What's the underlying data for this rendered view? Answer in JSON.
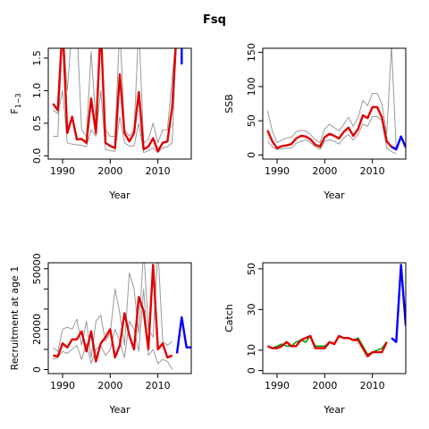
{
  "title": "Fsq",
  "colors": {
    "median": "#e00000",
    "bounds": "#999999",
    "forecast": "#0000ff",
    "observed": "#009900",
    "axis": "#000000"
  },
  "chart_data": [
    {
      "type": "line",
      "ylabel": "F",
      "ylabel_sub": "1−3",
      "xlabel": "Year",
      "xlim": [
        1987,
        2017
      ],
      "ylim": [
        -0.05,
        1.65
      ],
      "x_ticks": [
        1990,
        2000,
        2010
      ],
      "y_ticks": [
        0.0,
        0.5,
        1.0,
        1.5
      ],
      "y_tick_labels": [
        "0.0",
        "0.5",
        "1.0",
        "1.5"
      ],
      "series": [
        {
          "role": "upper",
          "x": [
            1988,
            1989,
            1990,
            1991,
            1992,
            1993,
            1994,
            1995,
            1996,
            1997,
            1998,
            1999,
            2000,
            2001,
            2002,
            2003,
            2004,
            2005,
            2006,
            2007,
            2008,
            2009,
            2010,
            2011,
            2012,
            2013,
            2014
          ],
          "values": [
            0.3,
            0.3,
            2.0,
            1.0,
            2.0,
            2.0,
            0.4,
            0.3,
            1.6,
            0.5,
            2.0,
            0.4,
            0.3,
            0.3,
            2.0,
            0.4,
            0.3,
            0.4,
            2.0,
            0.2,
            0.25,
            0.5,
            0.2,
            0.4,
            0.4,
            1.2,
            2.0
          ]
        },
        {
          "role": "lower",
          "x": [
            1988,
            1989,
            1990,
            1991,
            1992,
            1993,
            1994,
            1995,
            1996,
            1997,
            1998,
            1999,
            2000,
            2001,
            2002,
            2003,
            2004,
            2005,
            2006,
            2007,
            2008,
            2009,
            2010,
            2011,
            2012,
            2013,
            2014
          ],
          "values": [
            0.7,
            0.65,
            1.0,
            0.2,
            0.18,
            0.17,
            0.16,
            0.14,
            0.4,
            0.3,
            1.0,
            0.1,
            0.08,
            0.07,
            0.6,
            0.2,
            0.15,
            0.15,
            0.5,
            0.05,
            0.08,
            0.12,
            0.05,
            0.12,
            0.14,
            0.2,
            2.0
          ]
        },
        {
          "role": "median",
          "x": [
            1988,
            1989,
            1990,
            1991,
            1992,
            1993,
            1994,
            1995,
            1996,
            1997,
            1998,
            1999,
            2000,
            2001,
            2002,
            2003,
            2004,
            2005,
            2006,
            2007,
            2008,
            2009,
            2010,
            2011,
            2012,
            2013,
            2014
          ],
          "values": [
            0.8,
            0.7,
            2.0,
            0.35,
            0.6,
            0.25,
            0.26,
            0.2,
            0.88,
            0.35,
            2.0,
            0.2,
            0.15,
            0.12,
            1.25,
            0.35,
            0.22,
            0.35,
            0.98,
            0.1,
            0.14,
            0.27,
            0.07,
            0.2,
            0.22,
            0.75,
            2.0
          ]
        },
        {
          "role": "forecast",
          "x": [
            2015,
            2015
          ],
          "values": [
            2.0,
            1.4
          ]
        }
      ]
    },
    {
      "type": "line",
      "ylabel": "SSB",
      "xlabel": "Year",
      "xlim": [
        1987,
        2017
      ],
      "ylim": [
        -6,
        156
      ],
      "x_ticks": [
        1990,
        2000,
        2010
      ],
      "y_ticks": [
        0,
        50,
        100,
        150
      ],
      "y_tick_labels": [
        "0",
        "50",
        "100",
        "150"
      ],
      "series": [
        {
          "role": "upper",
          "x": [
            1988,
            1989,
            1990,
            1991,
            1992,
            1993,
            1994,
            1995,
            1996,
            1997,
            1998,
            1999,
            2000,
            2001,
            2002,
            2003,
            2004,
            2005,
            2006,
            2007,
            2008,
            2009,
            2010,
            2011,
            2012,
            2013,
            2014,
            2015
          ],
          "values": [
            65,
            35,
            18,
            22,
            25,
            26,
            34,
            36,
            35,
            30,
            22,
            18,
            38,
            45,
            40,
            35,
            45,
            55,
            42,
            55,
            80,
            72,
            90,
            90,
            75,
            30,
            160,
            10
          ]
        },
        {
          "role": "lower",
          "x": [
            1988,
            1989,
            1990,
            1991,
            1992,
            1993,
            1994,
            1995,
            1996,
            1997,
            1998,
            1999,
            2000,
            2001,
            2002,
            2003,
            2004,
            2005,
            2006,
            2007,
            2008,
            2009,
            2010,
            2011,
            2012,
            2013,
            2014,
            2015
          ],
          "values": [
            20,
            12,
            8,
            9,
            10,
            10,
            17,
            20,
            22,
            18,
            12,
            8,
            20,
            22,
            20,
            16,
            25,
            30,
            22,
            30,
            45,
            42,
            56,
            56,
            50,
            10,
            5,
            2
          ]
        },
        {
          "role": "median",
          "x": [
            1988,
            1989,
            1990,
            1991,
            1992,
            1993,
            1994,
            1995,
            1996,
            1997,
            1998,
            1999,
            2000,
            2001,
            2002,
            2003,
            2004,
            2005,
            2006,
            2007,
            2008,
            2009,
            2010,
            2011,
            2012,
            2013,
            2014,
            2015
          ],
          "values": [
            36,
            20,
            10,
            13,
            14,
            16,
            24,
            28,
            27,
            23,
            15,
            12,
            26,
            31,
            28,
            24,
            34,
            40,
            28,
            38,
            58,
            54,
            70,
            70,
            55,
            20,
            12,
            9
          ]
        },
        {
          "role": "forecast",
          "x": [
            2014,
            2015,
            2016,
            2017
          ],
          "values": [
            12,
            8,
            27,
            11
          ]
        }
      ]
    },
    {
      "type": "line",
      "ylabel": "Recruitment at age 1",
      "xlabel": "Year",
      "xlim": [
        1987,
        2017
      ],
      "ylim": [
        -2000,
        53000
      ],
      "x_ticks": [
        1990,
        2000,
        2010
      ],
      "y_ticks": [
        0,
        10000,
        20000,
        30000,
        40000,
        50000
      ],
      "y_tick_labels": [
        "0",
        "",
        "20000",
        "",
        "",
        "50000"
      ],
      "series": [
        {
          "role": "upper",
          "x": [
            1988,
            1989,
            1990,
            1991,
            1992,
            1993,
            1994,
            1995,
            1996,
            1997,
            1998,
            1999,
            2000,
            2001,
            2002,
            2003,
            2004,
            2005,
            2006,
            2007,
            2008,
            2009,
            2010,
            2011,
            2012,
            2013
          ],
          "values": [
            11000,
            9000,
            20000,
            21000,
            20000,
            25000,
            12000,
            24000,
            6000,
            24000,
            27000,
            14000,
            18000,
            40000,
            28000,
            12000,
            48000,
            40000,
            18000,
            60000,
            20000,
            16000,
            60000,
            14000,
            12000,
            14000
          ]
        },
        {
          "role": "lower",
          "x": [
            1988,
            1989,
            1990,
            1991,
            1992,
            1993,
            1994,
            1995,
            1996,
            1997,
            1998,
            1999,
            2000,
            2001,
            2002,
            2003,
            2004,
            2005,
            2006,
            2007,
            2008,
            2009,
            2010,
            2011,
            2012,
            2013
          ],
          "values": [
            5000,
            6000,
            9000,
            8000,
            10000,
            12000,
            5000,
            13000,
            3000,
            10000,
            12000,
            7000,
            10000,
            20000,
            14000,
            6000,
            24000,
            20000,
            9000,
            40000,
            7000,
            10000,
            3000,
            5000,
            4000,
            0
          ]
        },
        {
          "role": "median",
          "x": [
            1988,
            1989,
            1990,
            1991,
            1992,
            1993,
            1994,
            1995,
            1996,
            1997,
            1998,
            1999,
            2000,
            2001,
            2002,
            2003,
            2004,
            2005,
            2006,
            2007,
            2008,
            2009,
            2010,
            2011,
            2012,
            2013
          ],
          "values": [
            7000,
            6500,
            13000,
            11000,
            15000,
            15000,
            19000,
            9000,
            19000,
            4000,
            13000,
            16000,
            20000,
            6000,
            12000,
            28000,
            17000,
            10000,
            36000,
            29000,
            10000,
            52000,
            10000,
            13000,
            6000,
            7000
          ]
        },
        {
          "role": "forecast",
          "x": [
            2014,
            2015,
            2016,
            2017
          ],
          "values": [
            8000,
            26000,
            11000,
            11000
          ]
        }
      ]
    },
    {
      "type": "line",
      "ylabel": "Catch",
      "xlabel": "Year",
      "xlim": [
        1987,
        2017
      ],
      "ylim": [
        -1.5,
        53
      ],
      "x_ticks": [
        1990,
        2000,
        2010
      ],
      "y_ticks": [
        0,
        10,
        30,
        50
      ],
      "y_tick_labels": [
        "0",
        "10",
        "30",
        "50"
      ],
      "series": [
        {
          "role": "observed",
          "x": [
            1988,
            1989,
            1990,
            1991,
            1992,
            1993,
            1994,
            1995,
            1996,
            1997,
            1998,
            1999,
            2000,
            2001,
            2002,
            2003,
            2004,
            2005,
            2006,
            2007,
            2008,
            2009,
            2010,
            2011,
            2012,
            2013
          ],
          "values": [
            12,
            11,
            12,
            13,
            12,
            12,
            14,
            15,
            14,
            17,
            12,
            12,
            12,
            14,
            13,
            17,
            16,
            16,
            15,
            16,
            12,
            8,
            9,
            10,
            11,
            14
          ]
        },
        {
          "role": "median",
          "x": [
            1988,
            1989,
            1990,
            1991,
            1992,
            1993,
            1994,
            1995,
            1996,
            1997,
            1998,
            1999,
            2000,
            2001,
            2002,
            2003,
            2004,
            2005,
            2006,
            2007,
            2008,
            2009,
            2010,
            2011,
            2012,
            2013
          ],
          "values": [
            12,
            11,
            11,
            12,
            14,
            12,
            12,
            15,
            16,
            17,
            11,
            11,
            11,
            14,
            13,
            17,
            16,
            16,
            15,
            15,
            11,
            7,
            9,
            9,
            9,
            14
          ]
        },
        {
          "role": "forecast",
          "x": [
            2014,
            2015,
            2016,
            2017
          ],
          "values": [
            16,
            14,
            52,
            22
          ]
        }
      ]
    }
  ]
}
